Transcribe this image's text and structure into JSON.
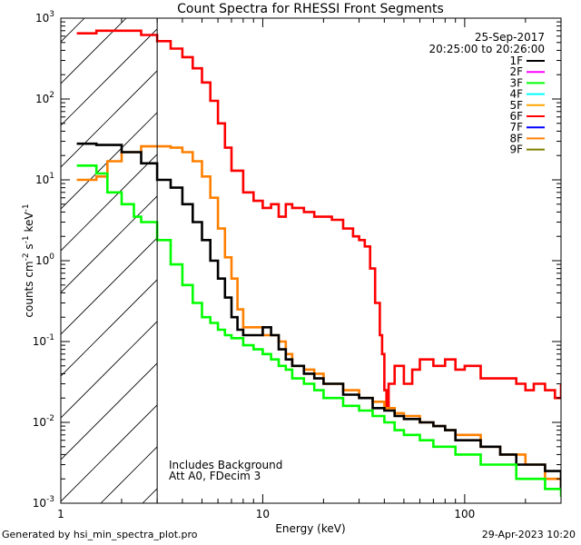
{
  "chart_data": {
    "type": "line",
    "title": "Count Spectra for RHESSI Front Segments",
    "xlabel": "Energy (keV)",
    "ylabel": "counts cm-2 s-1 keV-1",
    "xscale": "log",
    "yscale": "log",
    "xlim": [
      1,
      300
    ],
    "ylim": [
      0.001,
      1000
    ],
    "x_tick_labels": [
      "1",
      "10",
      "100"
    ],
    "y_tick_labels": [
      {
        "base": "10",
        "exp": "3"
      },
      {
        "base": "10",
        "exp": "2"
      },
      {
        "base": "10",
        "exp": "1"
      },
      {
        "base": "10",
        "exp": "0"
      },
      {
        "base": "10",
        "exp": "-1"
      },
      {
        "base": "10",
        "exp": "-2"
      },
      {
        "base": "10",
        "exp": "-3"
      }
    ],
    "date": "25-Sep-2017",
    "time_range": "20:25:00 to 20:26:00",
    "annotations": [
      "Includes Background",
      "Att A0, FDecim 3"
    ],
    "hatched_region": [
      1,
      3
    ],
    "legend": [
      {
        "label": "1F",
        "color": "#000000"
      },
      {
        "label": "2F",
        "color": "#ff00ff"
      },
      {
        "label": "3F",
        "color": "#00ff00"
      },
      {
        "label": "4F",
        "color": "#00ffff"
      },
      {
        "label": "5F",
        "color": "#ffa500"
      },
      {
        "label": "6F",
        "color": "#ff0000"
      },
      {
        "label": "7F",
        "color": "#0000ff"
      },
      {
        "label": "8F",
        "color": "#ff8000"
      },
      {
        "label": "9F",
        "color": "#808000"
      }
    ],
    "series": [
      {
        "name": "6F",
        "color": "#ff0000",
        "x": [
          1.2,
          1.5,
          2.0,
          2.5,
          3.0,
          3.5,
          4.0,
          4.5,
          5.0,
          5.5,
          6.0,
          6.5,
          7.0,
          8.0,
          9.0,
          10,
          11,
          12,
          13,
          14,
          16,
          18,
          20,
          22,
          25,
          28,
          30,
          32,
          34,
          36,
          38,
          39,
          40,
          41,
          42,
          45,
          50,
          55,
          60,
          70,
          80,
          90,
          100,
          120,
          150,
          180,
          200,
          220,
          250,
          280,
          300
        ],
        "y": [
          650,
          700,
          700,
          620,
          520,
          420,
          330,
          240,
          160,
          95,
          50,
          25,
          13,
          7,
          5.5,
          4.5,
          5,
          3.5,
          5,
          4.5,
          4,
          3.5,
          3.5,
          3.2,
          2.5,
          2,
          1.8,
          1.5,
          0.8,
          0.3,
          0.12,
          0.07,
          0.025,
          0.015,
          0.03,
          0.05,
          0.03,
          0.045,
          0.06,
          0.05,
          0.06,
          0.045,
          0.05,
          0.035,
          0.035,
          0.03,
          0.025,
          0.03,
          0.025,
          0.02,
          0.03
        ]
      },
      {
        "name": "8F",
        "color": "#ff8000",
        "x": [
          1.2,
          1.5,
          1.7,
          2.0,
          2.5,
          3.0,
          3.5,
          4.0,
          4.5,
          5.0,
          5.5,
          6.0,
          6.5,
          7.0,
          7.5,
          8.0,
          9.0,
          10,
          11,
          12,
          13,
          14,
          16,
          18,
          20,
          25,
          30,
          35,
          40,
          45,
          50,
          60,
          70,
          80,
          90,
          100,
          120,
          150,
          180,
          200,
          250,
          300
        ],
        "y": [
          10,
          11,
          17,
          22,
          26,
          26,
          25,
          22,
          17,
          11,
          6,
          2.5,
          1.1,
          0.6,
          0.25,
          0.15,
          0.15,
          0.12,
          0.12,
          0.1,
          0.07,
          0.05,
          0.045,
          0.04,
          0.03,
          0.025,
          0.02,
          0.018,
          0.015,
          0.013,
          0.012,
          0.01,
          0.009,
          0.008,
          0.007,
          0.007,
          0.005,
          0.004,
          0.004,
          0.003,
          0.002,
          0.0015
        ]
      },
      {
        "name": "1F",
        "color": "#000000",
        "x": [
          1.2,
          1.5,
          2.0,
          2.5,
          3.0,
          3.5,
          4.0,
          4.5,
          5.0,
          5.5,
          6.0,
          6.5,
          7.0,
          7.5,
          8.0,
          9.0,
          10,
          11,
          12,
          13,
          14,
          16,
          18,
          20,
          25,
          30,
          35,
          40,
          45,
          50,
          60,
          70,
          80,
          90,
          100,
          120,
          150,
          180,
          200,
          250,
          300
        ],
        "y": [
          28,
          27,
          22,
          16,
          10,
          8,
          5,
          3,
          1.8,
          1,
          0.6,
          0.35,
          0.2,
          0.14,
          0.12,
          0.12,
          0.15,
          0.12,
          0.08,
          0.06,
          0.05,
          0.04,
          0.035,
          0.03,
          0.022,
          0.02,
          0.015,
          0.014,
          0.012,
          0.011,
          0.01,
          0.009,
          0.008,
          0.006,
          0.006,
          0.005,
          0.004,
          0.003,
          0.003,
          0.0025,
          0.0015
        ]
      },
      {
        "name": "3F",
        "color": "#00ff00",
        "x": [
          1.2,
          1.5,
          1.7,
          2.0,
          2.3,
          2.5,
          3.0,
          3.5,
          4.0,
          4.5,
          5.0,
          5.5,
          6.0,
          6.5,
          7.0,
          8.0,
          9.0,
          10,
          11,
          12,
          13,
          14,
          16,
          18,
          20,
          25,
          30,
          35,
          40,
          45,
          50,
          60,
          70,
          80,
          90,
          100,
          120,
          150,
          180,
          200,
          250,
          300
        ],
        "y": [
          15,
          12,
          7,
          5,
          3.5,
          3,
          1.8,
          0.9,
          0.5,
          0.3,
          0.2,
          0.17,
          0.14,
          0.12,
          0.11,
          0.09,
          0.08,
          0.07,
          0.06,
          0.05,
          0.045,
          0.035,
          0.03,
          0.025,
          0.02,
          0.016,
          0.014,
          0.012,
          0.01,
          0.008,
          0.007,
          0.006,
          0.005,
          0.005,
          0.004,
          0.004,
          0.003,
          0.003,
          0.002,
          0.002,
          0.0015,
          0.0012
        ]
      }
    ]
  },
  "footer": {
    "left": "Generated by hsi_min_spectra_plot.pro",
    "right": "29-Apr-2023 10:20"
  }
}
